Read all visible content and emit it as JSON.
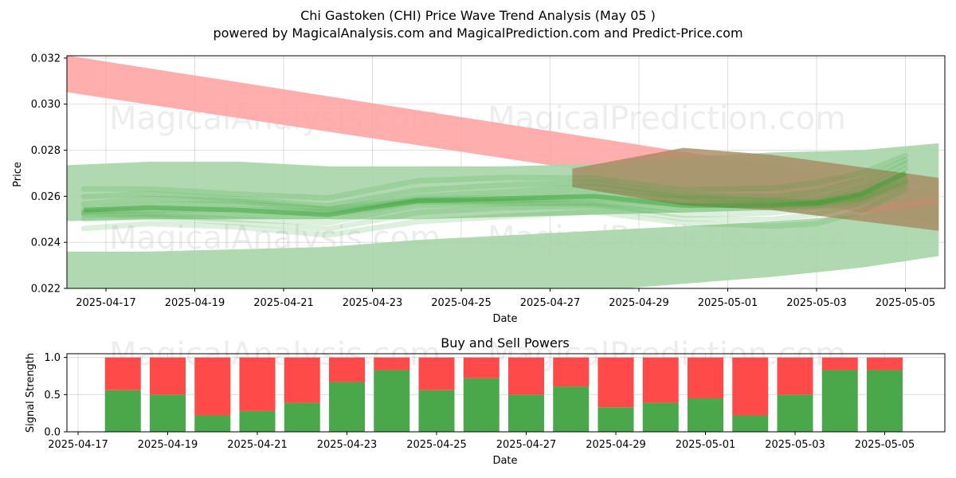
{
  "title": "Chi Gastoken (CHI) Price Wave Trend Analysis (May 05 )",
  "subtitle": "powered by MagicalAnalysis.com and MagicalPrediction.com and Predict-Price.com",
  "watermarks": [
    "MagicalAnalysis.com",
    "MagicalPrediction.com"
  ],
  "colors": {
    "sell": "#ff4a4a",
    "buy": "#4aa84a",
    "band_red": "#ffa0a0",
    "band_green": "#a8d5a8",
    "wave": "#2ca02c",
    "band_brown": "#a88860"
  },
  "chart_data": [
    {
      "type": "area",
      "ylabel": "Price",
      "xlabel": "Date",
      "x_tick_labels": [
        "2025-04-17",
        "2025-04-19",
        "2025-04-21",
        "2025-04-23",
        "2025-04-25",
        "2025-04-27",
        "2025-04-29",
        "2025-05-01",
        "2025-05-03",
        "2025-05-05"
      ],
      "y_tick_labels": [
        "0.022",
        "0.024",
        "0.026",
        "0.028",
        "0.030",
        "0.032"
      ],
      "ylim": [
        0.022,
        0.0321
      ],
      "grid": true,
      "bands": [
        {
          "color": "red",
          "x": [
            "2025-04-15T12",
            "2025-05-05T18"
          ],
          "upper": [
            0.0323,
            0.0262
          ],
          "lower": [
            0.0307,
            0.0248
          ]
        },
        {
          "color": "green",
          "x": [
            "2025-04-15T12",
            "2025-04-18",
            "2025-04-20",
            "2025-04-22",
            "2025-04-24",
            "2025-04-26",
            "2025-04-28",
            "2025-04-30",
            "2025-05-02",
            "2025-05-04",
            "2025-05-05T18"
          ],
          "upper": [
            0.0273,
            0.0275,
            0.0275,
            0.0273,
            0.0273,
            0.0273,
            0.0274,
            0.0277,
            0.0279,
            0.028,
            0.0283
          ],
          "lower": [
            0.0249,
            0.025,
            0.025,
            0.025,
            0.025,
            0.0251,
            0.0252,
            0.0253,
            0.0254,
            0.0255,
            0.026
          ]
        },
        {
          "color": "green",
          "x": [
            "2025-04-15T12",
            "2025-04-18",
            "2025-04-20",
            "2025-04-22",
            "2025-04-24",
            "2025-04-26",
            "2025-04-28",
            "2025-04-30",
            "2025-05-02",
            "2025-05-04",
            "2025-05-05T18"
          ],
          "upper": [
            0.0236,
            0.0236,
            0.0237,
            0.0238,
            0.0241,
            0.0243,
            0.0245,
            0.0247,
            0.0249,
            0.0252,
            0.0257
          ],
          "lower": [
            0.021,
            0.021,
            0.0211,
            0.0212,
            0.0214,
            0.0216,
            0.0219,
            0.0222,
            0.0225,
            0.0229,
            0.0234
          ]
        },
        {
          "color": "brown",
          "x": [
            "2025-04-27T12",
            "2025-04-30",
            "2025-05-02",
            "2025-05-05T18"
          ],
          "upper": [
            0.0272,
            0.0281,
            0.0278,
            0.0268
          ],
          "lower": [
            0.0264,
            0.0256,
            0.0254,
            0.0245
          ]
        }
      ],
      "wave_center": {
        "x": [
          "2025-04-16T12",
          "2025-04-18",
          "2025-04-20",
          "2025-04-22",
          "2025-04-24",
          "2025-04-26",
          "2025-04-28",
          "2025-04-30",
          "2025-05-02",
          "2025-05-03",
          "2025-05-04",
          "2025-05-05"
        ],
        "y": [
          0.0254,
          0.0255,
          0.0254,
          0.0252,
          0.0258,
          0.0259,
          0.026,
          0.0256,
          0.0256,
          0.0257,
          0.0261,
          0.027
        ]
      }
    },
    {
      "type": "bar",
      "title": "Buy and Sell Powers",
      "ylabel": "Signal Strength",
      "xlabel": "Date",
      "x_tick_labels": [
        "2025-04-17",
        "2025-04-19",
        "2025-04-21",
        "2025-04-23",
        "2025-04-25",
        "2025-04-27",
        "2025-04-29",
        "2025-05-01",
        "2025-05-03",
        "2025-05-05"
      ],
      "y_tick_labels": [
        "0.0",
        "0.5",
        "1.0"
      ],
      "ylim": [
        0,
        1.05
      ],
      "categories": [
        "2025-04-18",
        "2025-04-19",
        "2025-04-20",
        "2025-04-21",
        "2025-04-22",
        "2025-04-23",
        "2025-04-24",
        "2025-04-25",
        "2025-04-26",
        "2025-04-27",
        "2025-04-28",
        "2025-04-29",
        "2025-04-30",
        "2025-05-01",
        "2025-05-02",
        "2025-05-03",
        "2025-05-04",
        "2025-05-05"
      ],
      "series": [
        {
          "values": [
            0.56,
            0.5,
            0.22,
            0.28,
            0.39,
            0.67,
            0.83,
            0.56,
            0.72,
            0.5,
            0.61,
            0.33,
            0.39,
            0.45,
            0.22,
            0.5,
            0.83,
            0.83
          ]
        },
        {
          "values": [
            0.44,
            0.5,
            0.78,
            0.72,
            0.61,
            0.33,
            0.17,
            0.44,
            0.28,
            0.5,
            0.39,
            0.67,
            0.61,
            0.55,
            0.78,
            0.5,
            0.17,
            0.17
          ]
        }
      ]
    }
  ]
}
